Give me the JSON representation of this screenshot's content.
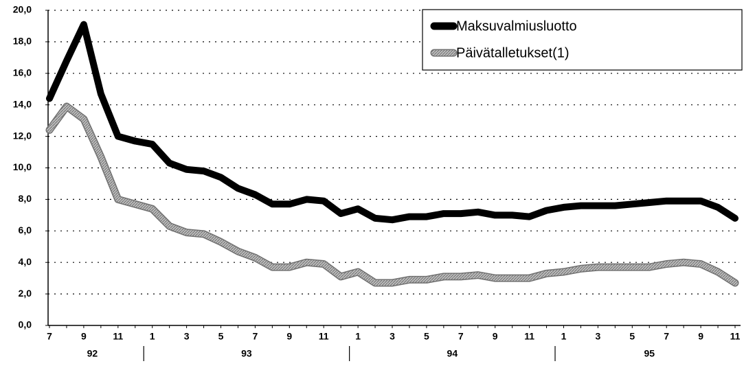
{
  "chart_data": {
    "type": "line",
    "categories": [
      "7",
      null,
      "9",
      null,
      "11",
      null,
      "1",
      null,
      "3",
      null,
      "5",
      null,
      "7",
      null,
      "9",
      null,
      "11",
      null,
      "1",
      null,
      "3",
      null,
      "5",
      null,
      "7",
      null,
      "9",
      null,
      "11",
      null,
      "1",
      null,
      "3",
      null,
      "5",
      null,
      "7",
      null,
      "9",
      null,
      "11"
    ],
    "year_labels": [
      "92",
      "93",
      "94",
      "95"
    ],
    "series": [
      {
        "name": "Maksuvalmiusluotto",
        "color": "#000000",
        "values": [
          14.4,
          16.8,
          19.1,
          14.7,
          12.0,
          11.7,
          11.5,
          10.3,
          9.9,
          9.8,
          9.4,
          8.7,
          8.3,
          7.7,
          7.7,
          8.0,
          7.9,
          7.1,
          7.4,
          6.8,
          6.7,
          6.9,
          6.9,
          7.1,
          7.1,
          7.2,
          7.0,
          7.0,
          6.9,
          7.3,
          7.5,
          7.6,
          7.6,
          7.6,
          7.7,
          7.8,
          7.9,
          7.9,
          7.9,
          7.5,
          6.8
        ]
      },
      {
        "name": "Päivätalletukset(1)",
        "color": "#a6a6a6",
        "values": [
          12.4,
          13.9,
          13.1,
          10.7,
          8.0,
          7.7,
          7.4,
          6.3,
          5.9,
          5.8,
          5.3,
          4.7,
          4.3,
          3.7,
          3.7,
          4.0,
          3.9,
          3.1,
          3.4,
          2.7,
          2.7,
          2.9,
          2.9,
          3.1,
          3.1,
          3.2,
          3.0,
          3.0,
          3.0,
          3.3,
          3.4,
          3.6,
          3.7,
          3.7,
          3.7,
          3.7,
          3.9,
          4.0,
          3.9,
          3.4,
          2.7
        ]
      }
    ],
    "ylim": [
      0,
      20
    ],
    "yticks": [
      {
        "value": 0,
        "label": "0,0"
      },
      {
        "value": 2,
        "label": "2,0"
      },
      {
        "value": 4,
        "label": "4,0"
      },
      {
        "value": 6,
        "label": "6,0"
      },
      {
        "value": 8,
        "label": "8,0"
      },
      {
        "value": 10,
        "label": "10,0"
      },
      {
        "value": 12,
        "label": "12,0"
      },
      {
        "value": 14,
        "label": "14,0"
      },
      {
        "value": 16,
        "label": "16,0"
      },
      {
        "value": 18,
        "label": "18,0"
      },
      {
        "value": 20,
        "label": "20,0"
      }
    ],
    "grid": true,
    "legend": "top-right"
  }
}
